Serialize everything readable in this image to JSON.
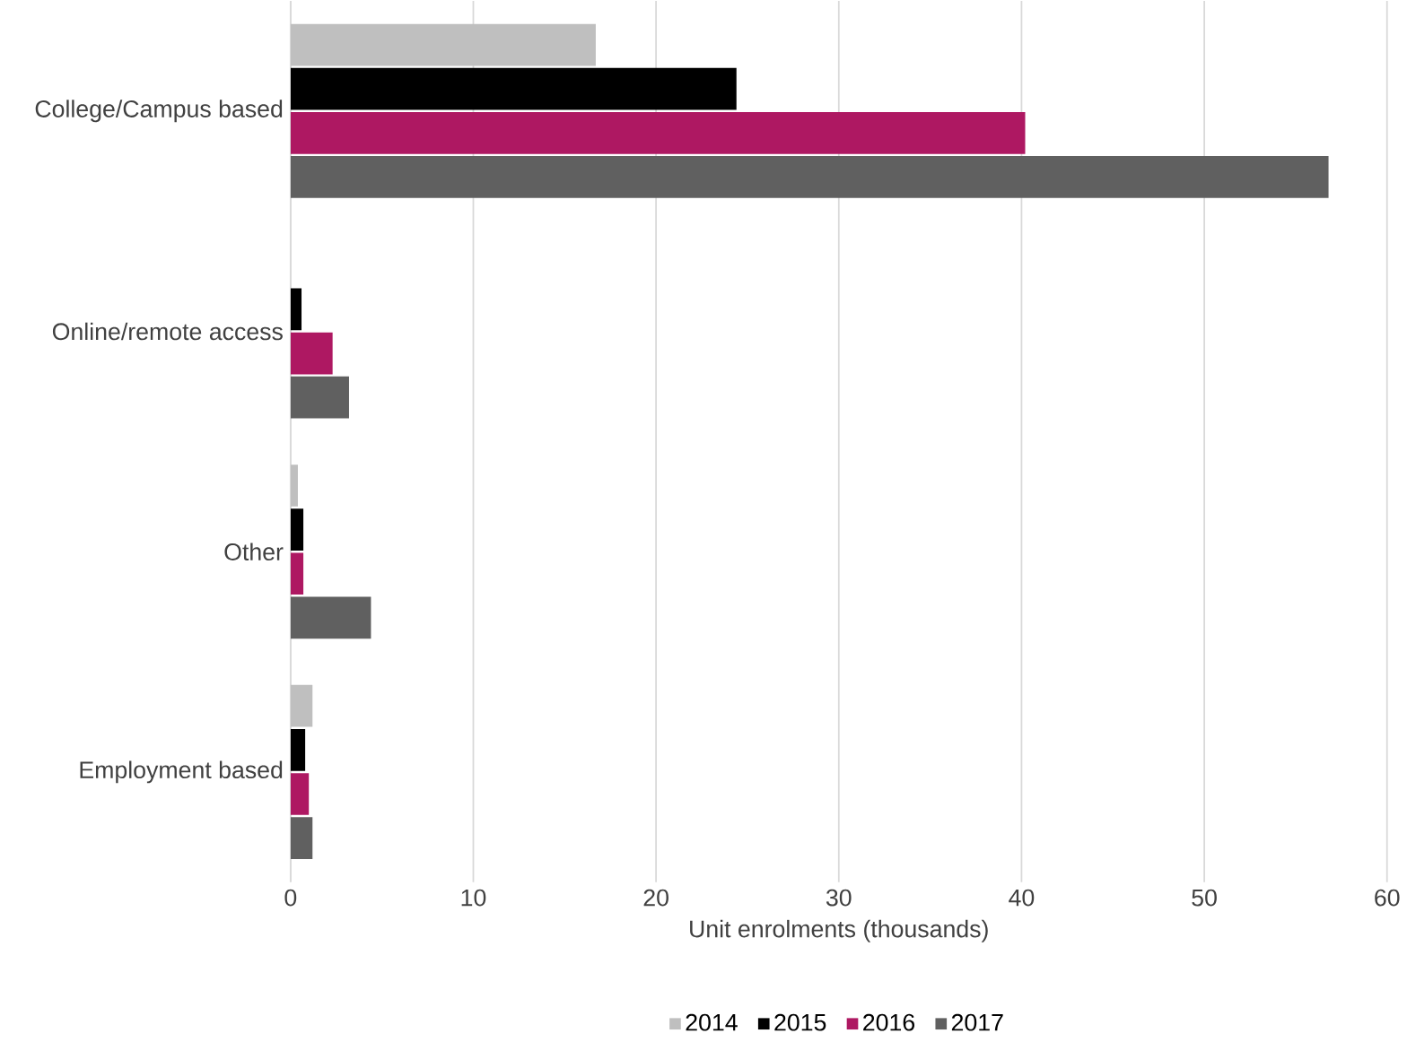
{
  "chart_data": {
    "type": "bar",
    "orientation": "horizontal",
    "categories": [
      "College/Campus based",
      "Online/remote access",
      "Other",
      "Employment based"
    ],
    "xlabel": "Unit enrolments (thousands)",
    "xlim": [
      0,
      60
    ],
    "xticks": [
      0,
      10,
      20,
      30,
      40,
      50,
      60
    ],
    "grid": "x",
    "legend": "bottom",
    "series": [
      {
        "name": "2014",
        "color": "#bfbfbf",
        "values": [
          16.7,
          0,
          0.4,
          1.2
        ]
      },
      {
        "name": "2015",
        "color": "#000000",
        "values": [
          24.4,
          0.6,
          0.7,
          0.8
        ]
      },
      {
        "name": "2016",
        "color": "#ae1862",
        "values": [
          40.2,
          2.3,
          0.7,
          1.0
        ]
      },
      {
        "name": "2017",
        "color": "#606060",
        "values": [
          56.8,
          3.2,
          4.4,
          1.2
        ]
      }
    ]
  }
}
